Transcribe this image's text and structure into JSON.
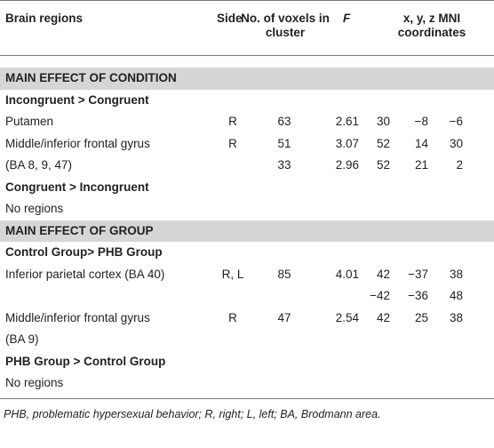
{
  "table": {
    "header": [
      "Brain regions",
      "Side",
      "No. of voxels in cluster",
      "F",
      "x, y, z MNI coordinates"
    ],
    "sections": [
      {
        "title": "MAIN EFFECT OF CONDITION",
        "groups": [
          {
            "title": "Incongruent > Congruent",
            "rows": [
              [
                "Putamen",
                "R",
                "63",
                "2.61",
                "30",
                "−8",
                "−6"
              ],
              [
                "Middle/inferior frontal gyrus",
                "R",
                "51",
                "3.07",
                "52",
                "14",
                "30"
              ],
              [
                "(BA 8, 9, 47)",
                null,
                "33",
                "2.96",
                "52",
                "21",
                "2"
              ]
            ]
          },
          {
            "title": "Congruent > Incongruent",
            "rows": [
              [
                "No regions"
              ]
            ]
          }
        ]
      },
      {
        "title": "MAIN EFFECT OF GROUP",
        "groups": [
          {
            "title": "Control Group> PHB Group",
            "rows": [
              [
                "Inferior parietal cortex (BA 40)",
                "R, L",
                "85",
                "4.01",
                "42",
                "−37",
                "38"
              ],
              [
                null,
                null,
                null,
                null,
                "−42",
                "−36",
                "48"
              ],
              [
                "Middle/inferior frontal gyrus",
                "R",
                "47",
                "2.54",
                "42",
                "25",
                "38"
              ],
              [
                "(BA 9)"
              ]
            ]
          },
          {
            "title": "PHB Group > Control Group",
            "rows": [
              [
                "No regions"
              ]
            ]
          }
        ]
      }
    ]
  },
  "footnote": "PHB, problematic hypersexual behavior; R, right; L, left; BA, Brodmann area."
}
